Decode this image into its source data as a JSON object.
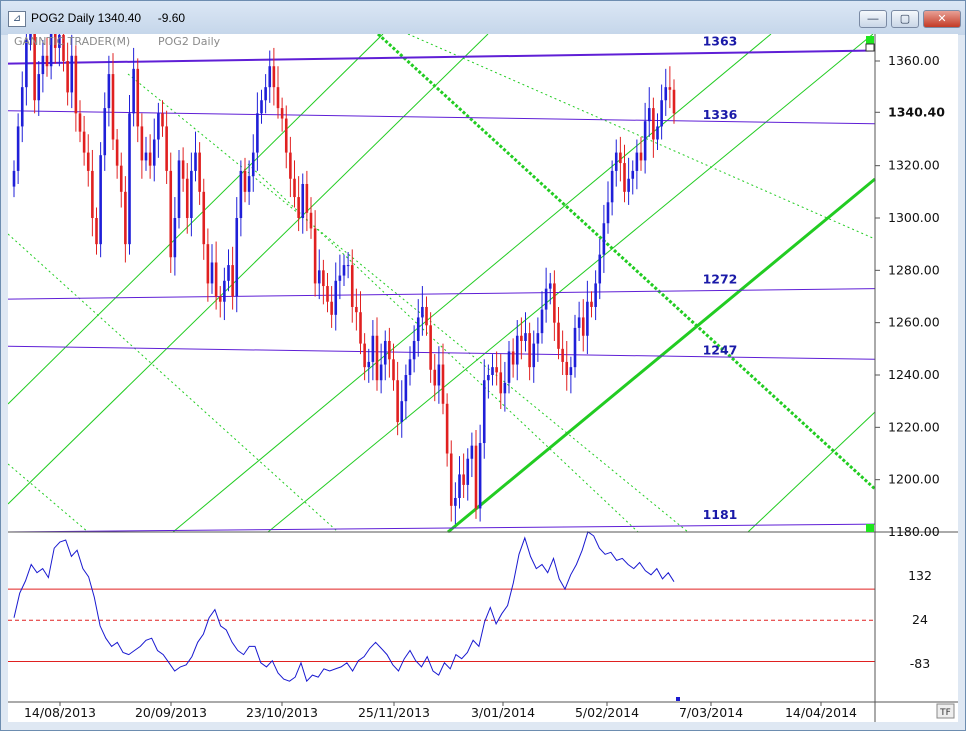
{
  "window": {
    "title": "POG2 Daily 1340.40     -9.60",
    "icon": "chart-window-icon",
    "buttons": [
      {
        "name": "minimize",
        "label": "—"
      },
      {
        "name": "maximize",
        "label": "▢"
      },
      {
        "name": "close",
        "label": "✕"
      }
    ]
  },
  "panel_labels": {
    "indicator": "GANNTIC TRADER(M)",
    "symbol": "POG2 Daily"
  },
  "tf_badge": "TF",
  "colors": {
    "bull": "#1f1fd8",
    "bear": "#e02020",
    "level": "#5f1fd6",
    "fan": "#22cc22",
    "osc": "#1a1ad0",
    "osc_ref": "#e02020"
  },
  "chart_data": {
    "type": "candlestick",
    "symbol": "POG2",
    "timeframe": "Daily",
    "last": 1340.4,
    "change": -9.6,
    "y_axis": {
      "ticks": [
        "1360.00",
        "1340.40",
        "1320.00",
        "1300.00",
        "1280.00",
        "1260.00",
        "1240.00",
        "1220.00",
        "1200.00",
        "1180.00"
      ],
      "ylim": [
        1180,
        1362
      ]
    },
    "x_axis": {
      "ticks": [
        "14/08/2013",
        "20/09/2013",
        "23/10/2013",
        "25/11/2013",
        "3/01/2014",
        "5/02/2014",
        "7/03/2014",
        "14/04/2014"
      ]
    },
    "levels": [
      {
        "label": "1363",
        "start": 1359,
        "end": 1364
      },
      {
        "label": "1336",
        "start": 1341,
        "end": 1336
      },
      {
        "label": "1272",
        "start": 1269,
        "end": 1273
      },
      {
        "label": "1247",
        "start": 1251,
        "end": 1246
      },
      {
        "label": "1181",
        "start": 1180,
        "end": 1183
      }
    ],
    "candles_close": [
      1318,
      1335,
      1350,
      1368,
      1372,
      1345,
      1355,
      1362,
      1358,
      1372,
      1365,
      1370,
      1360,
      1348,
      1362,
      1340,
      1333,
      1325,
      1318,
      1300,
      1290,
      1324,
      1342,
      1355,
      1330,
      1320,
      1310,
      1290,
      1340,
      1357,
      1335,
      1322,
      1325,
      1320,
      1330,
      1340,
      1335,
      1318,
      1285,
      1300,
      1322,
      1315,
      1300,
      1318,
      1325,
      1310,
      1290,
      1275,
      1283,
      1270,
      1268,
      1276,
      1282,
      1270,
      1300,
      1318,
      1310,
      1316,
      1325,
      1340,
      1345,
      1350,
      1358,
      1350,
      1342,
      1338,
      1325,
      1315,
      1308,
      1300,
      1313,
      1302,
      1296,
      1275,
      1280,
      1274,
      1268,
      1263,
      1276,
      1278,
      1282,
      1282,
      1266,
      1264,
      1252,
      1243,
      1245,
      1255,
      1238,
      1244,
      1253,
      1246,
      1238,
      1222,
      1230,
      1240,
      1246,
      1253,
      1262,
      1266,
      1259,
      1242,
      1236,
      1244,
      1229,
      1210,
      1190,
      1193,
      1202,
      1198,
      1208,
      1213,
      1189,
      1214,
      1238,
      1240,
      1243,
      1241,
      1233,
      1237,
      1249,
      1244,
      1255,
      1253,
      1256,
      1243,
      1252,
      1256,
      1265,
      1273,
      1275,
      1260,
      1250,
      1245,
      1240,
      1243,
      1258,
      1262,
      1255,
      1268,
      1266,
      1275,
      1286,
      1298,
      1306,
      1318,
      1325,
      1321,
      1310,
      1315,
      1318,
      1325,
      1322,
      1337,
      1342,
      1330,
      1335,
      1345,
      1350,
      1349,
      1340
    ],
    "oscillator": {
      "ticks": [
        "132",
        "24",
        "-83"
      ],
      "ref_lines": [
        100,
        24,
        -77
      ],
      "ylim": [
        -125,
        245
      ],
      "values": [
        30,
        90,
        120,
        160,
        140,
        150,
        128,
        200,
        215,
        220,
        180,
        195,
        150,
        130,
        80,
        10,
        -20,
        -40,
        -30,
        -55,
        -60,
        -50,
        -40,
        -25,
        -20,
        -50,
        -60,
        -80,
        -100,
        -90,
        -85,
        -65,
        -30,
        -10,
        30,
        50,
        10,
        0,
        -30,
        -50,
        -60,
        -40,
        -40,
        -80,
        -90,
        -75,
        -105,
        -120,
        -130,
        -115,
        -80,
        -125,
        -110,
        -115,
        -95,
        -100,
        -95,
        -90,
        -80,
        -100,
        -75,
        -65,
        -45,
        -30,
        -45,
        -60,
        -85,
        -100,
        -70,
        -50,
        -75,
        -90,
        -65,
        -100,
        -110,
        -80,
        -95,
        -60,
        -70,
        -55,
        -25,
        -40,
        20,
        55,
        15,
        40,
        60,
        115,
        185,
        225,
        180,
        150,
        160,
        140,
        175,
        125,
        100,
        135,
        160,
        195,
        240,
        230,
        200,
        185,
        190,
        170,
        175,
        160,
        150,
        165,
        145,
        135,
        150,
        125,
        140,
        118
      ]
    }
  }
}
